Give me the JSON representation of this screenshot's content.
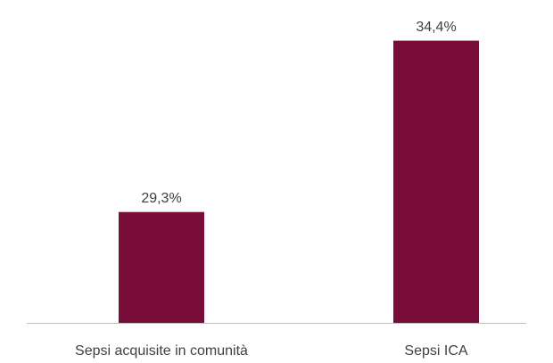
{
  "chart_data": {
    "type": "bar",
    "categories": [
      "Sepsi acquisite in comunità",
      "Sepsi ICA"
    ],
    "values": [
      29.3,
      34.4
    ],
    "value_labels": [
      "29,3%",
      "34,4%"
    ],
    "color": "#7a0c3a",
    "ylim": [
      26,
      35
    ]
  }
}
